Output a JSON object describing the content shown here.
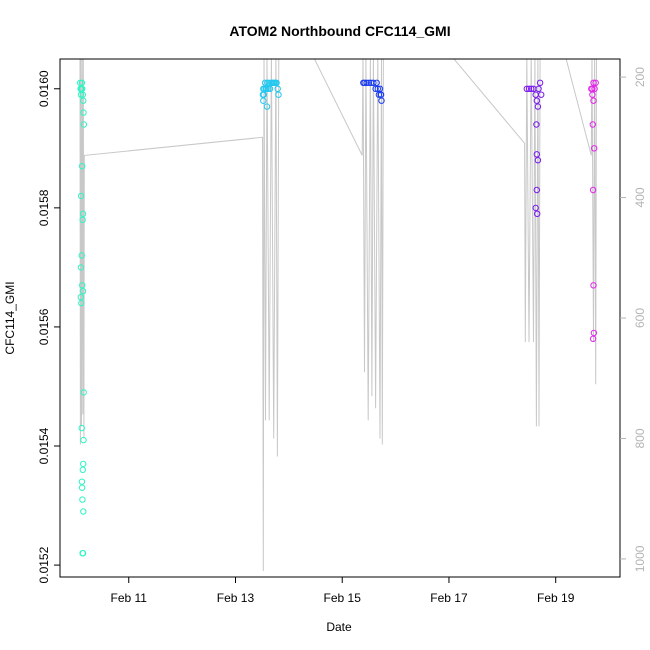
{
  "chart_data": {
    "type": "scatter",
    "title": "ATOM2 Northbound CFC114_GMI",
    "xlabel": "Date",
    "ylabel": "CFC114_GMI",
    "xlim": [
      "2016-02-09T17:05:00",
      "2016-02-20T04:55:00"
    ],
    "ylim": [
      0.01518,
      0.01605
    ],
    "x_ticks": [
      {
        "value": "2016-02-11",
        "label": "Feb 11"
      },
      {
        "value": "2016-02-13",
        "label": "Feb 13"
      },
      {
        "value": "2016-02-15",
        "label": "Feb 15"
      },
      {
        "value": "2016-02-17",
        "label": "Feb 17"
      },
      {
        "value": "2016-02-19",
        "label": "Feb 19"
      }
    ],
    "y_ticks": [
      {
        "value": 0.0152,
        "label": "0.0152"
      },
      {
        "value": 0.0154,
        "label": "0.0154"
      },
      {
        "value": 0.0156,
        "label": "0.0156"
      },
      {
        "value": 0.0158,
        "label": "0.0158"
      },
      {
        "value": 0.016,
        "label": "0.0160"
      }
    ],
    "y2_axis": {
      "ylim": [
        1030,
        170
      ],
      "color": "#b4b4b4",
      "ticks": [
        {
          "value": 200,
          "label": "200"
        },
        {
          "value": 400,
          "label": "400"
        },
        {
          "value": 600,
          "label": "600"
        },
        {
          "value": 800,
          "label": "800"
        },
        {
          "value": 1000,
          "label": "1000"
        }
      ]
    },
    "grid": false,
    "legend": "none",
    "flights": [
      {
        "color": "#2ff5c4",
        "points": [
          [
            "2016-02-10T02:10:00",
            0.01601
          ],
          [
            "2016-02-10T02:20:00",
            0.016
          ],
          [
            "2016-02-10T02:30:00",
            0.01599
          ],
          [
            "2016-02-10T02:40:00",
            0.016
          ],
          [
            "2016-02-10T02:55:00",
            0.01601
          ],
          [
            "2016-02-10T03:05:00",
            0.016
          ],
          [
            "2016-02-10T03:20:00",
            0.01599
          ],
          [
            "2016-02-10T03:30:00",
            0.01598
          ],
          [
            "2016-02-10T03:40:00",
            0.01596
          ],
          [
            "2016-02-10T03:50:00",
            0.01594
          ],
          [
            "2016-02-10T03:00:00",
            0.01587
          ],
          [
            "2016-02-10T02:35:00",
            0.01582
          ],
          [
            "2016-02-10T03:25:00",
            0.01579
          ],
          [
            "2016-02-10T03:15:00",
            0.01578
          ],
          [
            "2016-02-10T02:50:00",
            0.01572
          ],
          [
            "2016-02-10T02:30:00",
            0.0157
          ],
          [
            "2016-02-10T03:05:00",
            0.01567
          ],
          [
            "2016-02-10T03:25:00",
            0.01566
          ],
          [
            "2016-02-10T02:25:00",
            0.01565
          ],
          [
            "2016-02-10T02:40:00",
            0.01564
          ],
          [
            "2016-02-10T03:45:00",
            0.01549
          ],
          [
            "2016-02-10T02:50:00",
            0.01543
          ],
          [
            "2016-02-10T03:40:00",
            0.01541
          ],
          [
            "2016-02-10T03:30:00",
            0.01537
          ],
          [
            "2016-02-10T03:20:00",
            0.01536
          ],
          [
            "2016-02-10T02:55:00",
            0.01534
          ],
          [
            "2016-02-10T03:00:00",
            0.01533
          ],
          [
            "2016-02-10T03:10:00",
            0.01531
          ],
          [
            "2016-02-10T03:35:00",
            0.01529
          ],
          [
            "2016-02-10T03:15:00",
            0.01522
          ],
          [
            "2016-02-10T03:25:00",
            0.01522
          ]
        ],
        "altitude_profile": [
          [
            "2016-02-10T02:05:00",
            160
          ],
          [
            "2016-02-10T02:15:00",
            810
          ],
          [
            "2016-02-10T02:25:00",
            160
          ],
          [
            "2016-02-10T02:45:00",
            780
          ],
          [
            "2016-02-10T03:00:00",
            160
          ],
          [
            "2016-02-10T03:20:00",
            760
          ],
          [
            "2016-02-10T03:35:00",
            160
          ],
          [
            "2016-02-10T03:50:00",
            800
          ],
          [
            "2016-02-10T04:00:00",
            330
          ]
        ]
      },
      {
        "color": "#23c8f0",
        "points": [
          [
            "2016-02-13T12:30:00",
            0.016
          ],
          [
            "2016-02-13T12:45:00",
            0.01599
          ],
          [
            "2016-02-13T13:00:00",
            0.016
          ],
          [
            "2016-02-13T13:20:00",
            0.01601
          ],
          [
            "2016-02-13T13:40:00",
            0.016
          ],
          [
            "2016-02-13T14:00:00",
            0.016
          ],
          [
            "2016-02-13T14:20:00",
            0.01601
          ],
          [
            "2016-02-13T14:40:00",
            0.016
          ],
          [
            "2016-02-13T15:00:00",
            0.01601
          ],
          [
            "2016-02-13T15:30:00",
            0.016
          ],
          [
            "2016-02-13T16:00:00",
            0.01601
          ],
          [
            "2016-02-13T16:30:00",
            0.01601
          ],
          [
            "2016-02-13T17:00:00",
            0.01601
          ],
          [
            "2016-02-13T17:30:00",
            0.01601
          ],
          [
            "2016-02-13T18:00:00",
            0.01601
          ],
          [
            "2016-02-13T18:30:00",
            0.01601
          ],
          [
            "2016-02-13T19:00:00",
            0.016
          ],
          [
            "2016-02-13T19:20:00",
            0.01599
          ],
          [
            "2016-02-13T12:20:00",
            0.01599
          ],
          [
            "2016-02-13T12:30:00",
            0.01598
          ],
          [
            "2016-02-13T14:10:00",
            0.01597
          ]
        ],
        "altitude_profile": [
          [
            "2016-02-13T12:10:00",
            300
          ],
          [
            "2016-02-13T12:30:00",
            1020
          ],
          [
            "2016-02-13T12:50:00",
            160
          ],
          [
            "2016-02-13T13:30:00",
            770
          ],
          [
            "2016-02-13T14:10:00",
            160
          ],
          [
            "2016-02-13T15:10:00",
            770
          ],
          [
            "2016-02-13T16:10:00",
            160
          ],
          [
            "2016-02-13T17:10:00",
            800
          ],
          [
            "2016-02-13T18:10:00",
            160
          ],
          [
            "2016-02-13T18:50:00",
            830
          ],
          [
            "2016-02-13T19:30:00",
            160
          ]
        ]
      },
      {
        "color": "#1a3cf0",
        "points": [
          [
            "2016-02-15T09:30:00",
            0.01601
          ],
          [
            "2016-02-15T10:00:00",
            0.01601
          ],
          [
            "2016-02-15T11:00:00",
            0.01601
          ],
          [
            "2016-02-15T12:00:00",
            0.01601
          ],
          [
            "2016-02-15T13:00:00",
            0.01601
          ],
          [
            "2016-02-15T14:00:00",
            0.01601
          ],
          [
            "2016-02-15T15:00:00",
            0.016
          ],
          [
            "2016-02-15T15:30:00",
            0.01601
          ],
          [
            "2016-02-15T16:00:00",
            0.016
          ],
          [
            "2016-02-15T16:30:00",
            0.01599
          ],
          [
            "2016-02-15T17:00:00",
            0.016
          ],
          [
            "2016-02-15T17:20:00",
            0.01599
          ],
          [
            "2016-02-15T17:30:00",
            0.01599
          ],
          [
            "2016-02-15T17:40:00",
            0.01598
          ]
        ],
        "altitude_profile": [
          [
            "2016-02-14T07:30:00",
            140
          ],
          [
            "2016-02-15T09:00:00",
            330
          ],
          [
            "2016-02-15T09:20:00",
            160
          ],
          [
            "2016-02-15T10:00:00",
            690
          ],
          [
            "2016-02-15T10:40:00",
            160
          ],
          [
            "2016-02-15T11:40:00",
            770
          ],
          [
            "2016-02-15T12:40:00",
            160
          ],
          [
            "2016-02-15T13:20:00",
            730
          ],
          [
            "2016-02-15T14:00:00",
            160
          ],
          [
            "2016-02-15T15:00:00",
            750
          ],
          [
            "2016-02-15T16:00:00",
            160
          ],
          [
            "2016-02-15T17:00:00",
            800
          ],
          [
            "2016-02-15T17:40:00",
            160
          ],
          [
            "2016-02-15T18:00:00",
            810
          ],
          [
            "2016-02-15T18:30:00",
            160
          ]
        ]
      },
      {
        "color": "#7a1af0",
        "points": [
          [
            "2016-02-18T11:00:00",
            0.016
          ],
          [
            "2016-02-18T12:00:00",
            0.016
          ],
          [
            "2016-02-18T13:00:00",
            0.016
          ],
          [
            "2016-02-18T14:00:00",
            0.016
          ],
          [
            "2016-02-18T15:00:00",
            0.01599
          ],
          [
            "2016-02-18T15:30:00",
            0.01598
          ],
          [
            "2016-02-18T16:00:00",
            0.01597
          ],
          [
            "2016-02-18T16:20:00",
            0.016
          ],
          [
            "2016-02-18T17:00:00",
            0.01601
          ],
          [
            "2016-02-18T17:30:00",
            0.01599
          ],
          [
            "2016-02-18T15:20:00",
            0.01594
          ],
          [
            "2016-02-18T15:30:00",
            0.01589
          ],
          [
            "2016-02-18T16:00:00",
            0.01588
          ],
          [
            "2016-02-18T15:30:00",
            0.01583
          ],
          [
            "2016-02-18T15:00:00",
            0.0158
          ],
          [
            "2016-02-18T15:40:00",
            0.01579
          ]
        ],
        "altitude_profile": [
          [
            "2016-02-17T00:00:00",
            160
          ],
          [
            "2016-02-18T10:00:00",
            310
          ],
          [
            "2016-02-18T10:20:00",
            640
          ],
          [
            "2016-02-18T11:00:00",
            160
          ],
          [
            "2016-02-18T12:00:00",
            640
          ],
          [
            "2016-02-18T13:00:00",
            160
          ],
          [
            "2016-02-18T14:00:00",
            640
          ],
          [
            "2016-02-18T14:40:00",
            160
          ],
          [
            "2016-02-18T15:20:00",
            780
          ],
          [
            "2016-02-18T16:00:00",
            160
          ],
          [
            "2016-02-18T16:30:00",
            780
          ],
          [
            "2016-02-18T17:00:00",
            160
          ]
        ]
      },
      {
        "color": "#e426ea",
        "points": [
          [
            "2016-02-19T16:00:00",
            0.016
          ],
          [
            "2016-02-19T16:30:00",
            0.016
          ],
          [
            "2016-02-19T17:00:00",
            0.01601
          ],
          [
            "2016-02-19T17:30:00",
            0.016
          ],
          [
            "2016-02-19T18:00:00",
            0.01601
          ],
          [
            "2016-02-19T16:30:00",
            0.01599
          ],
          [
            "2016-02-19T17:00:00",
            0.01598
          ],
          [
            "2016-02-19T16:40:00",
            0.01594
          ],
          [
            "2016-02-19T17:20:00",
            0.0159
          ],
          [
            "2016-02-19T16:50:00",
            0.01583
          ],
          [
            "2016-02-19T17:00:00",
            0.01567
          ],
          [
            "2016-02-19T17:10:00",
            0.01559
          ],
          [
            "2016-02-19T16:50:00",
            0.01558
          ]
        ],
        "altitude_profile": [
          [
            "2016-02-19T04:00:00",
            160
          ],
          [
            "2016-02-19T16:00:00",
            330
          ],
          [
            "2016-02-19T16:20:00",
            160
          ],
          [
            "2016-02-19T17:00:00",
            640
          ],
          [
            "2016-02-19T17:30:00",
            160
          ],
          [
            "2016-02-19T18:00:00",
            710
          ],
          [
            "2016-02-19T18:20:00",
            160
          ]
        ]
      }
    ]
  }
}
